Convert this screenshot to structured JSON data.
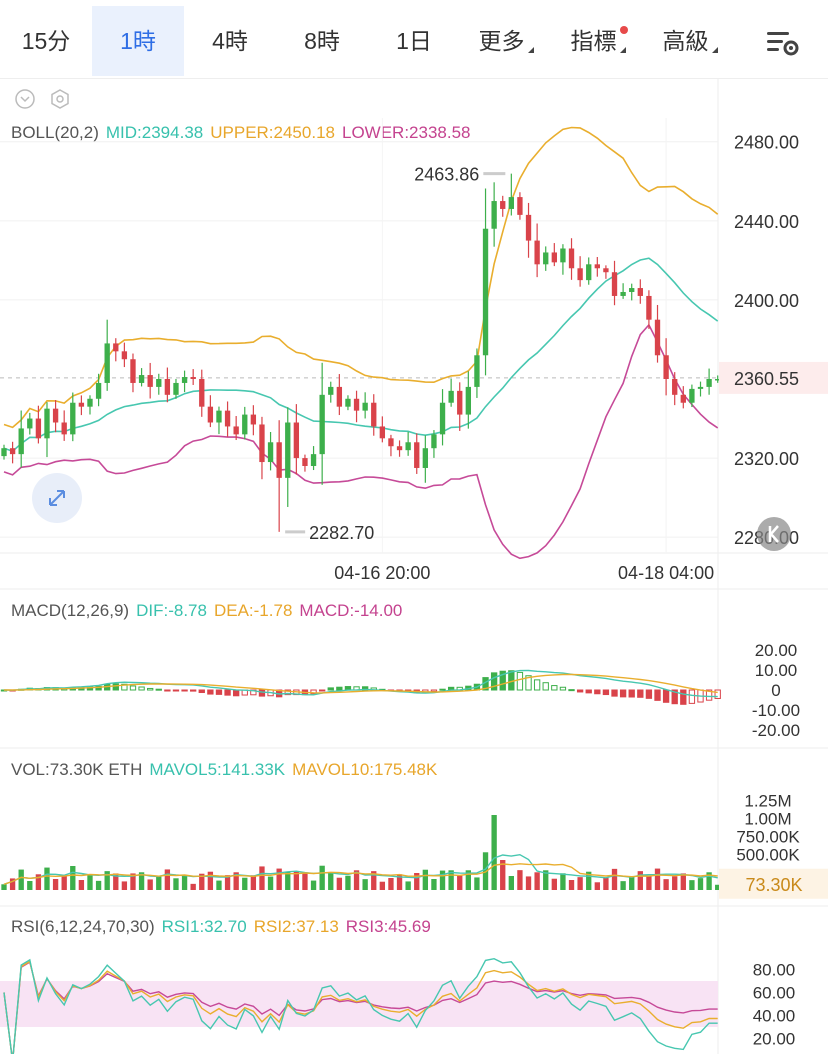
{
  "tabs": [
    {
      "label": "15分"
    },
    {
      "label": "1時"
    },
    {
      "label": "4時"
    },
    {
      "label": "8時"
    },
    {
      "label": "1日"
    },
    {
      "label": "更多"
    },
    {
      "label": "指標"
    },
    {
      "label": "高級"
    }
  ],
  "active_tab": "1時",
  "colors": {
    "up": "#3daf4b",
    "down": "#d9434a",
    "mid": "#47c7b0",
    "upper": "#e9ae2e",
    "lower": "#c64a98",
    "active_tab": "#2f6ee5"
  },
  "boll": {
    "label": "BOLL(20,2)",
    "mid": "MID:2394.38",
    "upper": "UPPER:2450.18",
    "lower": "LOWER:2338.58"
  },
  "macd": {
    "label": "MACD(12,26,9)",
    "dif": "DIF:-8.78",
    "dea": "DEA:-1.78",
    "macd": "MACD:-14.00"
  },
  "vol": {
    "label": "VOL:73.30K ETH",
    "mavol5": "MAVOL5:141.33K",
    "mavol10": "MAVOL10:175.48K",
    "current": "73.30K"
  },
  "rsi": {
    "label": "RSI(6,12,24,70,30)",
    "rsi1": "RSI1:32.70",
    "rsi2": "RSI2:37.13",
    "rsi3": "RSI3:45.69"
  },
  "chart_data": [
    {
      "type": "candlestick",
      "name": "price",
      "y_ticks": [
        "2480.00",
        "2440.00",
        "2400.00",
        "2360.55",
        "2320.00",
        "2280.00"
      ],
      "ylim": [
        2272,
        2492
      ],
      "x_ticks": [
        "04-16 20:00",
        "04-18 04:00"
      ],
      "current_price": "2360.55",
      "high_label": "2463.86",
      "low_label": "2282.70",
      "closes": [
        2325,
        2322,
        2335,
        2340,
        2330,
        2345,
        2338,
        2332,
        2348,
        2346,
        2350,
        2358,
        2378,
        2374,
        2370,
        2358,
        2362,
        2356,
        2360,
        2352,
        2358,
        2361,
        2360,
        2346,
        2338,
        2344,
        2336,
        2332,
        2342,
        2337,
        2318,
        2328,
        2310,
        2338,
        2320,
        2316,
        2322,
        2352,
        2356,
        2346,
        2350,
        2344,
        2348,
        2336,
        2330,
        2326,
        2324,
        2328,
        2315,
        2325,
        2332,
        2348,
        2354,
        2342,
        2356,
        2372,
        2436,
        2450,
        2446,
        2452,
        2443,
        2430,
        2418,
        2424,
        2419,
        2426,
        2416,
        2410,
        2418,
        2416,
        2414,
        2402,
        2404,
        2406,
        2402,
        2390,
        2372,
        2360,
        2352,
        2348,
        2355,
        2356,
        2360,
        2360
      ],
      "x_tick_index": [
        44,
        77
      ]
    },
    {
      "type": "bar+line",
      "name": "macd",
      "y_ticks": [
        "20.00",
        "10.00",
        "0",
        "-10.00",
        "-20.00"
      ],
      "ylim": [
        -25,
        25
      ]
    },
    {
      "type": "bar+line",
      "name": "volume",
      "y_ticks": [
        "1.25M",
        "1.00M",
        "750.00K",
        "500.00K"
      ],
      "ylim": [
        0,
        1400000
      ]
    },
    {
      "type": "line",
      "name": "rsi",
      "y_ticks": [
        "80.00",
        "60.00",
        "40.00",
        "20.00"
      ],
      "ylim": [
        10,
        90
      ],
      "band": [
        30,
        70
      ]
    }
  ]
}
